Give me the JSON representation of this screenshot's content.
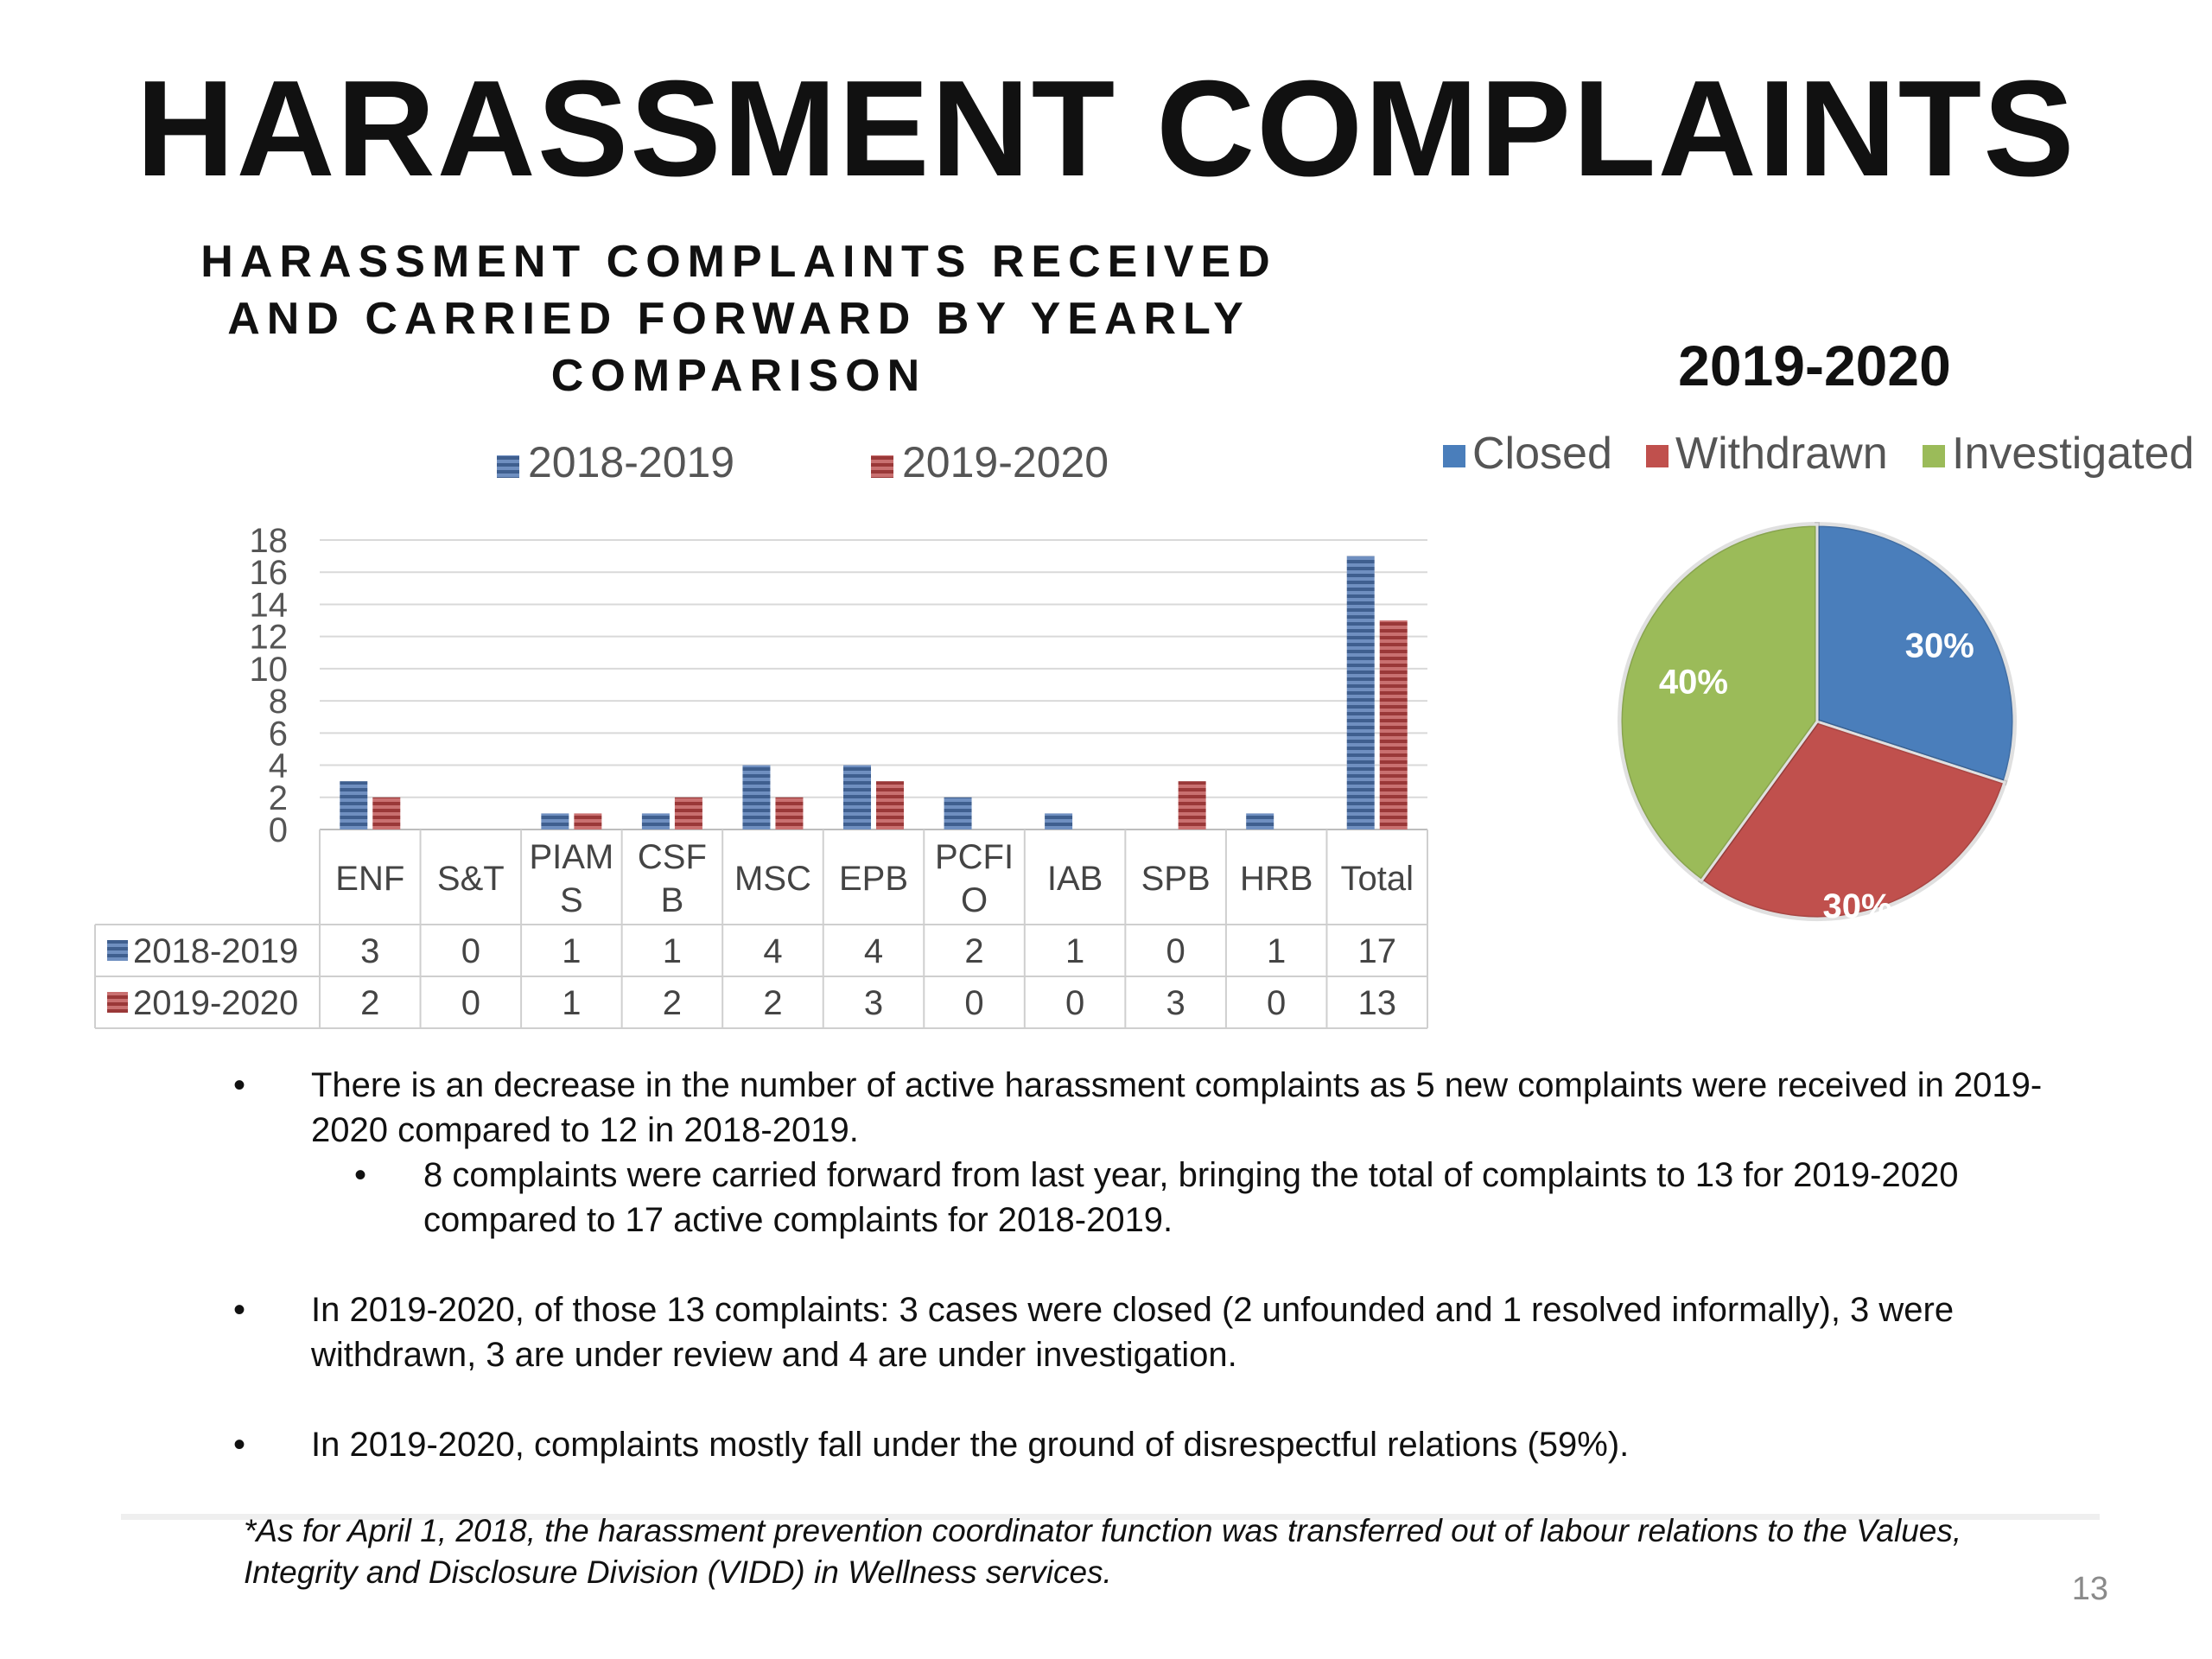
{
  "slide": {
    "title": "HARASSMENT COMPLAINTS",
    "page_number": "13"
  },
  "colors": {
    "series_2018": "#4f6fa0",
    "series_2019": "#b04a4a",
    "closed": "#4a7ebb",
    "withdrawn": "#c0504d",
    "investigated": "#9bbb59"
  },
  "chart_data": [
    {
      "type": "bar",
      "title": "HARASSMENT COMPLAINTS RECEIVED AND CARRIED FORWARD BY YEARLY COMPARISON",
      "categories": [
        "ENF",
        "S&T",
        "PIAMS",
        "CSFB",
        "MSC",
        "EPB",
        "PCFIO",
        "IAB",
        "SPB",
        "HRB",
        "Total"
      ],
      "category_display": [
        [
          "ENF"
        ],
        [
          "S&T"
        ],
        [
          "PIAM",
          "S"
        ],
        [
          "CSF",
          "B"
        ],
        [
          "MSC"
        ],
        [
          "EPB"
        ],
        [
          "PCFI",
          "O"
        ],
        [
          "IAB"
        ],
        [
          "SPB"
        ],
        [
          "HRB"
        ],
        [
          "Total"
        ]
      ],
      "series": [
        {
          "name": "2018-2019",
          "values": [
            3,
            0,
            1,
            1,
            4,
            4,
            2,
            1,
            0,
            1,
            17
          ]
        },
        {
          "name": "2019-2020",
          "values": [
            2,
            0,
            1,
            2,
            2,
            3,
            0,
            0,
            3,
            0,
            13
          ]
        }
      ],
      "yticks": [
        0,
        2,
        4,
        6,
        8,
        10,
        12,
        14,
        16,
        18
      ],
      "ylim": [
        0,
        18
      ],
      "grid": true,
      "legend": "top",
      "data_table": true
    },
    {
      "type": "pie",
      "title": "2019-2020",
      "labels": [
        "Closed",
        "Withdrawn",
        "Investigated"
      ],
      "values": [
        30,
        30,
        40
      ],
      "data_labels": [
        "30%",
        "30%",
        "40%"
      ],
      "legend": "top"
    }
  ],
  "bullets": [
    {
      "text": "There is an decrease in the number of active harassment complaints as 5 new complaints were received in 2019-2020 compared to 12 in 2018-2019."
    },
    {
      "text": "8 complaints were carried forward from last year, bringing the total of complaints to 13 for 2019-2020 compared to 17 active complaints for 2018-2019."
    },
    {
      "text": "In 2019-2020, of those 13 complaints: 3 cases were closed (2 unfounded and 1 resolved informally), 3 were withdrawn, 3 are under review and 4 are under investigation."
    },
    {
      "text": "In 2019-2020, complaints mostly fall under the ground of disrespectful relations (59%)."
    }
  ],
  "footnote": "*As for April 1, 2018, the harassment prevention coordinator function was transferred out of labour relations to the Values, Integrity and Disclosure Division (VIDD) in Wellness services."
}
